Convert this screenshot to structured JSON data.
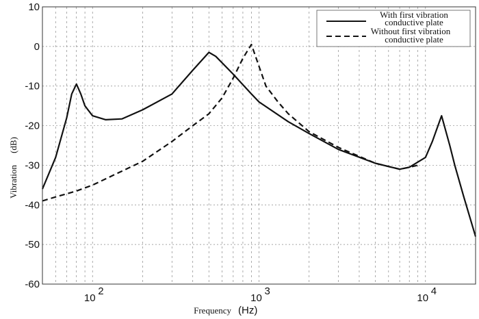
{
  "chart_data": {
    "type": "line",
    "title": "",
    "xlabel": "Frequency",
    "xunit": "(Hz)",
    "ylabel": "Vibration",
    "yunit": "(dB)",
    "xscale": "log",
    "xlim": [
      50,
      20000
    ],
    "ylim": [
      -60,
      10
    ],
    "yticks": [
      10,
      0,
      -10,
      -20,
      -30,
      -40,
      -50,
      -60
    ],
    "ytick_labels": [
      "10",
      "0",
      "-10",
      "-20",
      "-30",
      "-40",
      "-50",
      "-60"
    ],
    "xticks": [
      100,
      1000,
      10000
    ],
    "xtick_labels": [
      {
        "base": "10",
        "exp": "2"
      },
      {
        "base": "10",
        "exp": "3"
      },
      {
        "base": "10",
        "exp": "4"
      }
    ],
    "grid": true,
    "legend_position": "top-right",
    "series": [
      {
        "name": "With first vibration conductive plate",
        "legend_lines": [
          "With first vibration",
          "conductive plate"
        ],
        "style": "solid",
        "x": [
          50,
          60,
          70,
          75,
          80,
          85,
          90,
          100,
          120,
          150,
          200,
          300,
          400,
          500,
          550,
          700,
          900,
          1000,
          1500,
          2000,
          3000,
          5000,
          7000,
          8000,
          10000,
          11000,
          12500,
          14000,
          15000,
          17000,
          20000
        ],
        "y": [
          -36,
          -28,
          -18,
          -12,
          -9.5,
          -12,
          -15,
          -17.5,
          -18.5,
          -18.3,
          -16,
          -12,
          -6,
          -1.5,
          -2.5,
          -7,
          -12,
          -14,
          -19,
          -22,
          -26,
          -29.5,
          -31,
          -30.5,
          -28,
          -24,
          -17.5,
          -25,
          -30,
          -38,
          -48
        ]
      },
      {
        "name": "Without first vibration conductive plate",
        "legend_lines": [
          "Without first vibration",
          "conductive plate"
        ],
        "style": "dashed",
        "x": [
          50,
          60,
          80,
          100,
          200,
          300,
          400,
          500,
          600,
          700,
          800,
          900,
          1000,
          1100,
          1300,
          1500,
          2000,
          3000,
          5000,
          7000,
          8000,
          9000
        ],
        "y": [
          -39,
          -38,
          -36.5,
          -35,
          -29,
          -24,
          -20,
          -17,
          -13,
          -8,
          -3,
          0.5,
          -5,
          -10,
          -14,
          -17,
          -21.5,
          -25.5,
          -29.5,
          -31,
          -30.5,
          -30
        ]
      }
    ],
    "colors": {
      "line": "#111111",
      "grid": "#888888"
    }
  }
}
